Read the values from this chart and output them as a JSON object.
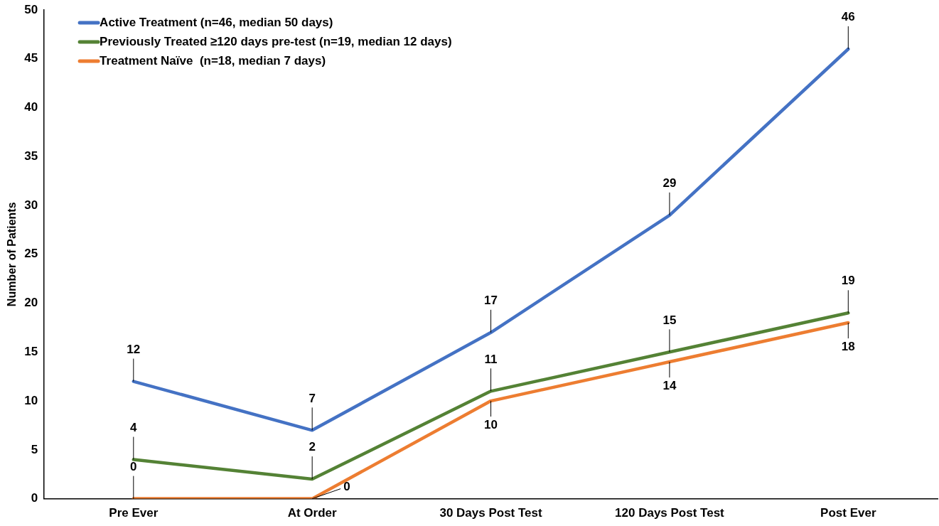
{
  "chart_data": {
    "type": "line",
    "ylabel": "Number of Patients",
    "categories": [
      "Pre Ever",
      "At Order",
      "30 Days Post Test",
      "120 Days Post Test",
      "Post Ever"
    ],
    "series": [
      {
        "name": "Active Treatment (n=46, median 50 days)",
        "color": "#4472c4",
        "values": [
          12,
          7,
          17,
          29,
          46
        ]
      },
      {
        "name": "Previously Treated ≥120 days pre-test (n=19, median 12 days)",
        "color": "#548235",
        "values": [
          4,
          2,
          11,
          15,
          19
        ]
      },
      {
        "name": "Treatment Naïve  (n=18, median 7 days)",
        "color": "#ed7d31",
        "values": [
          0,
          0,
          10,
          14,
          18
        ]
      }
    ],
    "ylim": [
      0,
      50
    ],
    "yticks": [
      0,
      5,
      10,
      15,
      20,
      25,
      30,
      35,
      40,
      45,
      50
    ],
    "grid": false,
    "legend": "top left",
    "marker": "none",
    "line_style": "solid",
    "data_labels": true
  }
}
